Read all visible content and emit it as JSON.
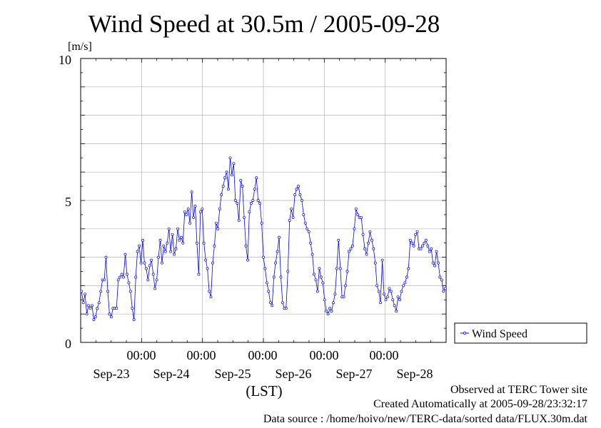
{
  "chart_data": {
    "type": "line",
    "title": "Wind Speed at 30.5m / 2005-09-28",
    "ylabel": "[m/s]",
    "xlabel": "(LST)",
    "ylim": [
      0,
      10
    ],
    "yticks": [
      "0",
      "5",
      "10"
    ],
    "time_labels": [
      "00:00",
      "00:00",
      "00:00",
      "00:00",
      "00:00"
    ],
    "date_labels": [
      "Sep-23",
      "Sep-24",
      "Sep-25",
      "Sep-26",
      "Sep-27",
      "Sep-28"
    ],
    "grid": true,
    "legend_position": "right",
    "x_range_days": [
      0,
      6
    ],
    "series": [
      {
        "name": "Wind Speed",
        "color": "#0000ff",
        "marker": "circle",
        "values": [
          1.8,
          1.4,
          1.7,
          1.0,
          1.3,
          1.2,
          1.3,
          0.8,
          0.9,
          1.2,
          1.4,
          1.8,
          2.2,
          2.2,
          3.0,
          1.8,
          1.0,
          0.9,
          1.2,
          1.2,
          1.2,
          2.2,
          2.3,
          2.4,
          2.3,
          3.1,
          2.4,
          2.1,
          1.8,
          1.2,
          0.8,
          2.3,
          3.2,
          3.4,
          2.8,
          3.6,
          2.8,
          2.6,
          2.2,
          2.7,
          2.9,
          2.4,
          1.9,
          2.2,
          3.0,
          3.6,
          2.8,
          3.4,
          3.2,
          3.5,
          4.0,
          3.2,
          3.8,
          3.1,
          3.3,
          4.0,
          3.6,
          3.7,
          3.5,
          4.6,
          4.5,
          4.7,
          4.2,
          5.3,
          4.4,
          4.8,
          3.5,
          2.4,
          4.6,
          4.7,
          3.5,
          2.9,
          2.6,
          1.8,
          1.6,
          2.8,
          3.4,
          4.2,
          4.0,
          4.7,
          5.2,
          5.5,
          5.8,
          6.0,
          5.4,
          6.5,
          5.9,
          6.3,
          5.0,
          4.9,
          4.3,
          5.7,
          5.5,
          4.4,
          3.4,
          2.9,
          4.6,
          4.9,
          5.0,
          5.4,
          5.8,
          5.0,
          4.9,
          4.2,
          3.0,
          2.6,
          2.1,
          1.8,
          1.4,
          1.3,
          2.3,
          2.8,
          3.2,
          3.7,
          2.3,
          1.4,
          1.2,
          1.2,
          2.5,
          4.3,
          4.7,
          4.4,
          5.2,
          5.4,
          5.5,
          5.2,
          5.0,
          4.5,
          4.2,
          4.0,
          3.9,
          3.5,
          3.1,
          2.4,
          2.2,
          1.8,
          2.6,
          2.3,
          2.1,
          1.5,
          1.1,
          1.0,
          1.2,
          1.1,
          1.4,
          1.7,
          2.6,
          3.6,
          2.6,
          1.6,
          1.6,
          2.0,
          2.5,
          3.2,
          3.3,
          3.4,
          4.0,
          4.7,
          4.5,
          4.4,
          4.4,
          3.8,
          3.3,
          3.1,
          3.5,
          3.9,
          3.6,
          3.3,
          2.8,
          2.0,
          1.8,
          1.4,
          2.9,
          1.7,
          1.5,
          1.6,
          1.9,
          1.8,
          1.5,
          1.3,
          1.1,
          1.6,
          1.5,
          1.8,
          2.0,
          2.1,
          2.3,
          2.6,
          3.6,
          3.5,
          3.4,
          3.8,
          3.9,
          3.3,
          3.3,
          3.4,
          3.5,
          3.6,
          3.4,
          3.2,
          3.3,
          2.8,
          2.7,
          3.2,
          2.8,
          2.3,
          2.2,
          1.8,
          1.9
        ]
      }
    ]
  },
  "legend": {
    "label": "Wind Speed"
  },
  "footer": {
    "line1": "Observed at TERC Tower site",
    "line2": "Created Automatically at 2005-09-28/23:32:17",
    "line3": "Data source : /home/hoivo/new/TERC-data/sorted  data/FLUX.30m.dat"
  }
}
